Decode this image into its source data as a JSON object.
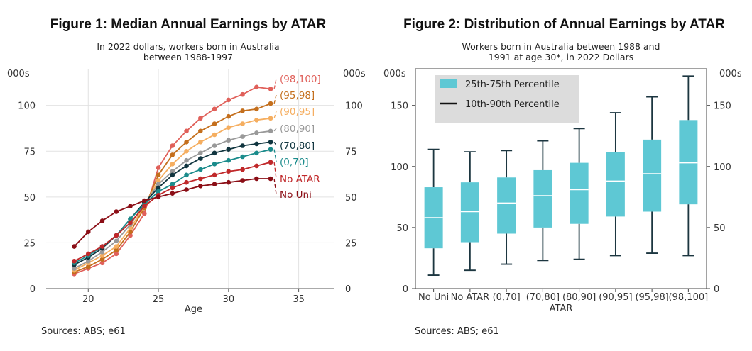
{
  "chart_data": [
    {
      "type": "line",
      "title": "Figure 1: Median Annual Earnings by ATAR",
      "subtitle": [
        "In 2022 dollars, workers born in Australia",
        "between 1988-1997"
      ],
      "xlabel": "Age",
      "ylabel_left": "000s",
      "ylabel_right": "000s",
      "xlim": [
        17,
        37.5
      ],
      "ylim": [
        0,
        120
      ],
      "xticks": [
        20,
        25,
        30,
        35
      ],
      "yticks": [
        0,
        25,
        50,
        75,
        100
      ],
      "grid": true,
      "x": [
        19,
        20,
        21,
        22,
        23,
        24,
        25,
        26,
        27,
        28,
        29,
        30,
        31,
        32,
        33
      ],
      "series": [
        {
          "name": "(98,100]",
          "color": "#e0605a",
          "values": [
            8,
            11,
            14,
            19,
            29,
            41,
            66,
            78,
            86,
            93,
            98,
            103,
            106,
            110,
            109
          ]
        },
        {
          "name": "(95,98]",
          "color": "#c46f1d",
          "values": [
            9,
            12,
            16,
            21,
            31,
            44,
            62,
            73,
            80,
            86,
            90,
            94,
            97,
            98,
            101
          ]
        },
        {
          "name": "(90,95]",
          "color": "#f5ae60",
          "values": [
            10,
            14,
            18,
            23,
            33,
            45,
            59,
            68,
            75,
            80,
            84,
            88,
            90,
            92,
            93
          ]
        },
        {
          "name": "(80,90]",
          "color": "#999999",
          "values": [
            11,
            15,
            20,
            26,
            35,
            46,
            57,
            64,
            70,
            74,
            78,
            81,
            83,
            85,
            86
          ]
        },
        {
          "name": "(70,80]",
          "color": "#10353f",
          "values": [
            13,
            17,
            22,
            29,
            38,
            47,
            55,
            62,
            67,
            71,
            74,
            76,
            78,
            79,
            80
          ]
        },
        {
          "name": "(0,70]",
          "color": "#1a8b8b",
          "values": [
            14,
            18,
            23,
            29,
            38,
            46,
            53,
            57,
            62,
            65,
            68,
            70,
            72,
            74,
            76
          ]
        },
        {
          "name": "No ATAR",
          "color": "#c0282a",
          "values": [
            15,
            19,
            23,
            29,
            36,
            45,
            51,
            55,
            58,
            60,
            62,
            64,
            65,
            67,
            69
          ]
        },
        {
          "name": "No Uni",
          "color": "#8b0e16",
          "values": [
            23,
            31,
            37,
            42,
            45,
            48,
            50,
            52,
            54,
            56,
            57,
            58,
            59,
            60,
            60
          ]
        }
      ],
      "source": "Sources: ABS; e61"
    },
    {
      "type": "box",
      "title": "Figure 2: Distribution of Annual Earnings by ATAR",
      "subtitle": [
        "Workers born in Australia between 1988 and",
        "1991 at age 30*, in 2022 Dollars"
      ],
      "xlabel": "ATAR",
      "ylabel_left": "000s",
      "ylabel_right": "000s",
      "ylim": [
        0,
        180
      ],
      "yticks": [
        0,
        50,
        100,
        150
      ],
      "grid": false,
      "legend": {
        "position": "top-left",
        "items": [
          "25th-75th Percentile",
          "10th-90th Percentile"
        ]
      },
      "box_color": "#5ec8d4",
      "categories": [
        "No Uni",
        "No ATAR",
        "(0,70]",
        "(70,80]",
        "(80,90]",
        "(90,95]",
        "(95,98]",
        "(98,100]"
      ],
      "boxes": [
        {
          "p10": 11,
          "p25": 33,
          "median": 58,
          "p75": 83,
          "p90": 114
        },
        {
          "p10": 15,
          "p25": 38,
          "median": 63,
          "p75": 87,
          "p90": 112
        },
        {
          "p10": 20,
          "p25": 45,
          "median": 70,
          "p75": 91,
          "p90": 113
        },
        {
          "p10": 23,
          "p25": 50,
          "median": 76,
          "p75": 97,
          "p90": 121
        },
        {
          "p10": 24,
          "p25": 53,
          "median": 81,
          "p75": 103,
          "p90": 131
        },
        {
          "p10": 27,
          "p25": 59,
          "median": 88,
          "p75": 112,
          "p90": 144
        },
        {
          "p10": 29,
          "p25": 63,
          "median": 94,
          "p75": 122,
          "p90": 157
        },
        {
          "p10": 27,
          "p25": 69,
          "median": 103,
          "p75": 138,
          "p90": 174
        }
      ],
      "source": "Sources: ABS; e61"
    }
  ]
}
